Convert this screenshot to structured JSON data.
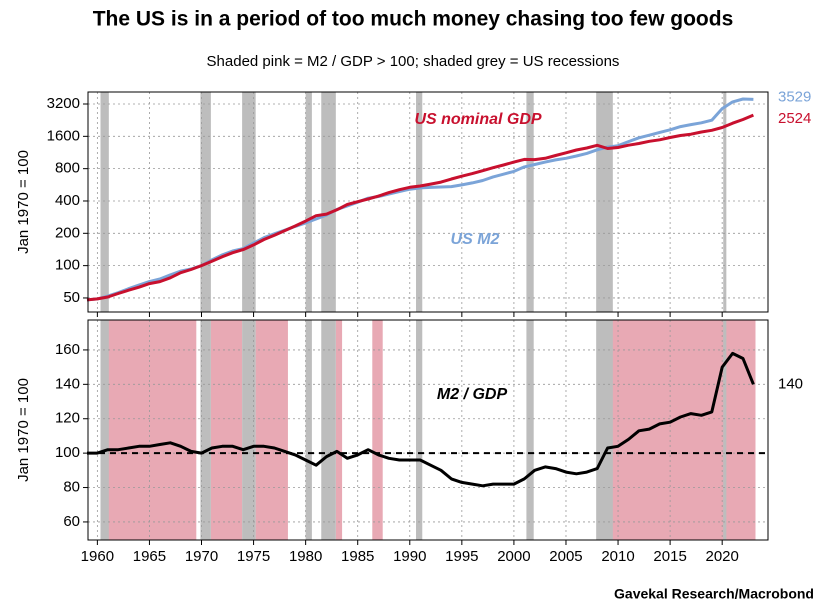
{
  "source": "Gavekal Research/Macrobond",
  "chart_data": [
    {
      "type": "line",
      "log": true,
      "title": "The US is in a period of too much money chasing too few goods",
      "subtitle": "Shaded pink = M2 / GDP > 100; shaded grey = US recessions",
      "ylabel": "Jan 1970 = 100",
      "x": [
        1959,
        1960,
        1961,
        1962,
        1963,
        1964,
        1965,
        1966,
        1967,
        1968,
        1969,
        1970,
        1971,
        1972,
        1973,
        1974,
        1975,
        1976,
        1977,
        1978,
        1979,
        1980,
        1981,
        1982,
        1983,
        1984,
        1985,
        1986,
        1987,
        1988,
        1989,
        1990,
        1991,
        1992,
        1993,
        1994,
        1995,
        1996,
        1997,
        1998,
        1999,
        2000,
        2001,
        2002,
        2003,
        2004,
        2005,
        2006,
        2007,
        2008,
        2009,
        2010,
        2011,
        2012,
        2013,
        2014,
        2015,
        2016,
        2017,
        2018,
        2019,
        2020,
        2021,
        2022,
        2023
      ],
      "series": [
        {
          "name": "US M2",
          "color": "#7ba4d8",
          "values": [
            48,
            49,
            52,
            56,
            61,
            66,
            71,
            75,
            82,
            89,
            93,
            100,
            113,
            126,
            137,
            144,
            162,
            182,
            198,
            214,
            232,
            250,
            272,
            296,
            334,
            360,
            390,
            425,
            440,
            465,
            490,
            515,
            530,
            535,
            540,
            545,
            565,
            590,
            620,
            670,
            710,
            755,
            830,
            875,
            920,
            965,
            1000,
            1050,
            1110,
            1200,
            1270,
            1310,
            1430,
            1550,
            1640,
            1740,
            1840,
            1970,
            2060,
            2140,
            2260,
            2900,
            3350,
            3560,
            3529
          ]
        },
        {
          "name": "US nominal GDP",
          "color": "#c8102e",
          "values": [
            48,
            49,
            51,
            55,
            59,
            63,
            68,
            71,
            77,
            86,
            92,
            100,
            110,
            121,
            132,
            141,
            156,
            175,
            192,
            212,
            234,
            260,
            292,
            302,
            331,
            371,
            394,
            417,
            444,
            479,
            510,
            536,
            552,
            575,
            600,
            641,
            681,
            720,
            765,
            817,
            866,
            921,
            976,
            972,
            1000,
            1060,
            1124,
            1193,
            1247,
            1319,
            1233,
            1260,
            1324,
            1372,
            1439,
            1487,
            1559,
            1628,
            1675,
            1754,
            1823,
            1933,
            2120,
            2297,
            2524
          ]
        }
      ],
      "recessions": [
        [
          1960.3,
          1961.1
        ],
        [
          1969.9,
          1970.9
        ],
        [
          1973.9,
          1975.2
        ],
        [
          1980.0,
          1980.6
        ],
        [
          1981.5,
          1982.9
        ],
        [
          1990.6,
          1991.2
        ],
        [
          2001.2,
          2001.9
        ],
        [
          2007.9,
          2009.5
        ],
        [
          2020.1,
          2020.4
        ]
      ],
      "xlim": [
        1959.1,
        2024.4
      ],
      "xticks": [
        1960,
        1965,
        1970,
        1975,
        1980,
        1985,
        1990,
        1995,
        2000,
        2005,
        2010,
        2015,
        2020
      ],
      "ylim": [
        37,
        4140
      ],
      "yticks": [
        50,
        100,
        200,
        400,
        800,
        1600,
        3200
      ],
      "grid": true
    },
    {
      "type": "line",
      "log": false,
      "ylabel": "Jan 1970 = 100",
      "x": [
        1959,
        1960,
        1961,
        1962,
        1963,
        1964,
        1965,
        1966,
        1967,
        1968,
        1969,
        1970,
        1971,
        1972,
        1973,
        1974,
        1975,
        1976,
        1977,
        1978,
        1979,
        1980,
        1981,
        1982,
        1983,
        1984,
        1985,
        1986,
        1987,
        1988,
        1989,
        1990,
        1991,
        1992,
        1993,
        1994,
        1995,
        1996,
        1997,
        1998,
        1999,
        2000,
        2001,
        2002,
        2003,
        2004,
        2005,
        2006,
        2007,
        2008,
        2009,
        2010,
        2011,
        2012,
        2013,
        2014,
        2015,
        2016,
        2017,
        2018,
        2019,
        2020,
        2021,
        2022,
        2023
      ],
      "series": [
        {
          "name": "M2 / GDP",
          "color": "#000000",
          "values": [
            100,
            100,
            102,
            102,
            103,
            104,
            104,
            105,
            106,
            104,
            101,
            100,
            103,
            104,
            104,
            102,
            104,
            104,
            103,
            101,
            99,
            96,
            93,
            98,
            101,
            97,
            99,
            102,
            99,
            97,
            96,
            96,
            96,
            93,
            90,
            85,
            83,
            82,
            81,
            82,
            82,
            82,
            85,
            90,
            92,
            91,
            89,
            88,
            89,
            91,
            103,
            104,
            108,
            113,
            114,
            117,
            118,
            121,
            123,
            122,
            124,
            150,
            158,
            155,
            140
          ]
        }
      ],
      "above_100": [
        [
          1960.6,
          1969.5
        ],
        [
          1970.9,
          1973.9
        ],
        [
          1975.2,
          1978.3
        ],
        [
          1982.9,
          1983.5
        ],
        [
          1986.4,
          1987.4
        ],
        [
          2009.3,
          2023.2
        ]
      ],
      "reference_line": 100,
      "xlim": [
        1959.1,
        2024.4
      ],
      "xticks": [
        1960,
        1965,
        1970,
        1975,
        1980,
        1985,
        1990,
        1995,
        2000,
        2005,
        2010,
        2015,
        2020
      ],
      "ylim": [
        49.5,
        177.4
      ],
      "yticks": [
        60,
        80,
        100,
        120,
        140,
        160
      ],
      "grid": true
    }
  ]
}
